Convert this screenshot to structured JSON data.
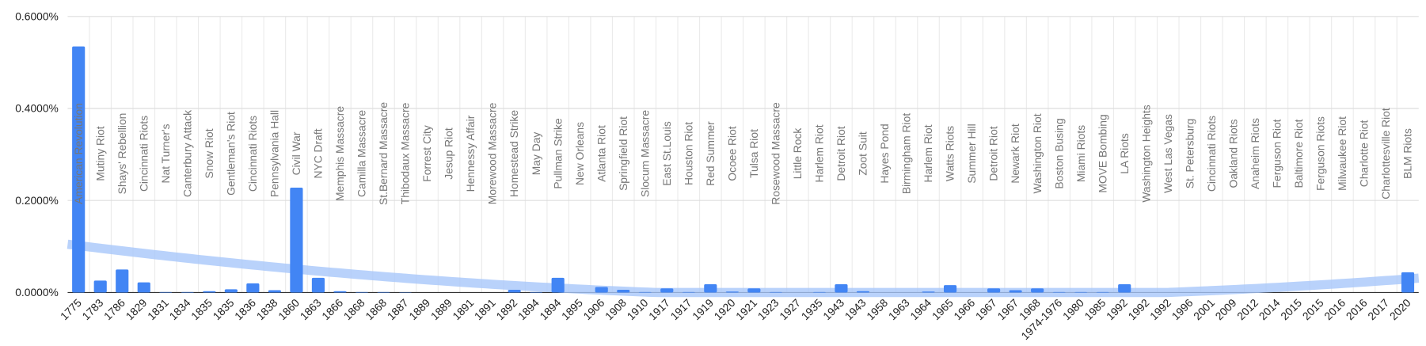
{
  "chart_data": {
    "type": "bar",
    "categories": [
      "1775",
      "1783",
      "1786",
      "1829",
      "1831",
      "1834",
      "1835",
      "1835",
      "1836",
      "1838",
      "1860",
      "1863",
      "1866",
      "1868",
      "1868",
      "1887",
      "1889",
      "1889",
      "1891",
      "1891",
      "1892",
      "1894",
      "1894",
      "1895",
      "1906",
      "1908",
      "1910",
      "1917",
      "1917",
      "1919",
      "1920",
      "1921",
      "1923",
      "1927",
      "1935",
      "1943",
      "1943",
      "1958",
      "1963",
      "1964",
      "1965",
      "1966",
      "1967",
      "1967",
      "1968",
      "1974-1976",
      "1980",
      "1985",
      "1992",
      "1992",
      "1992",
      "1996",
      "2001",
      "2009",
      "2012",
      "2014",
      "2015",
      "2015",
      "2016",
      "2016",
      "2017",
      "2020"
    ],
    "annotations": [
      "American Revolution",
      "Mutiny Riot",
      "Shays' Rebellion",
      "Cincinnati Riots",
      "Nat Turner's",
      "Canterbury Attack",
      "Snow Riot",
      "Gentleman's Riot",
      "Cincinnati Riots",
      "Pennsylvania Hall",
      "Civil War",
      "NYC Draft",
      "Memphis Massacre",
      "Camilla Massacre",
      "St.Bernard Massacre",
      "Thibodaux Massacre",
      "Forrest City",
      "Jesup Riot",
      "Hennessy Affair",
      "Morewood Massacre",
      "Homestead Strike",
      "May Day",
      "Pullman Strike",
      "New Orleans",
      "Atlanta Riot",
      "Springfield Riot",
      "Slocum Massacre",
      "East St.Louis",
      "Houston Riot",
      "Red Summer",
      "Ocoee Riot",
      "Tulsa Riot",
      "Rosewood Massacre",
      "Little Rock",
      "Harlem Riot",
      "Detroit Riot",
      "Zoot Suit",
      "Hayes Pond",
      "Birmingham Riot",
      "Harlem Riot",
      "Watts Riots",
      "Summer Hill",
      "Detroit Riot",
      "Newark Riot",
      "Washington Riot",
      "Boston Busing",
      "Miami Riots",
      "MOVE Bombing",
      "LA Riots",
      "Washington Heights",
      "West Las Vegas",
      "St. Petersburg",
      "Cincinnati Riots",
      "Oakland Riots",
      "Anaheim Riots",
      "Ferguson Riot",
      "Baltimore Riot",
      "Ferguson Riots",
      "Milwaukee Riot",
      "Charlotte Riot",
      "Charlottesville Riot",
      "BLM Riots"
    ],
    "values": [
      0.535,
      0.026,
      0.05,
      0.022,
      0.001,
      0.001,
      0.003,
      0.007,
      0.02,
      0.005,
      0.228,
      0.032,
      0.003,
      0.001,
      0.001,
      0.0005,
      0,
      0,
      0,
      0,
      0.006,
      0.001,
      0.032,
      0,
      0.012,
      0.006,
      0.001,
      0.009,
      0.001,
      0.018,
      0.002,
      0.009,
      0.001,
      0,
      0.001,
      0.018,
      0.003,
      0,
      0,
      0.002,
      0.016,
      0,
      0.009,
      0.005,
      0.009,
      0.001,
      0.001,
      0.001,
      0.018,
      0,
      0,
      0,
      0,
      0,
      0,
      0,
      0,
      0,
      0,
      0,
      0,
      0.044
    ],
    "color": "#4285f4",
    "trendline": {
      "type": "polynomial",
      "degree": 2,
      "color": "#a8c7fa"
    },
    "ylim": [
      0,
      0.6
    ],
    "yticks": [
      {
        "value": 0,
        "label": "0.0000%"
      },
      {
        "value": 0.2,
        "label": "0.2000%"
      },
      {
        "value": 0.4,
        "label": "0.4000%"
      },
      {
        "value": 0.6,
        "label": "0.6000%"
      }
    ],
    "grid": true
  }
}
